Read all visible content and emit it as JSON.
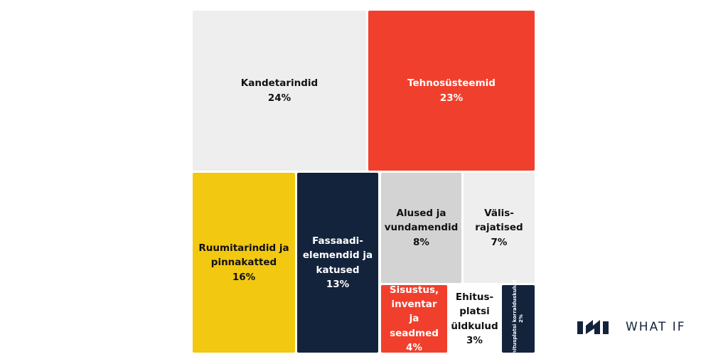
{
  "chart_data": {
    "type": "treemap",
    "categories": [
      "Kandetarindid",
      "Tehnosüsteemid",
      "Ruumitarindid ja pinnakatted",
      "Fassaadi-elemendid ja katused",
      "Alused ja vundamendid",
      "Välis-rajatised",
      "Sisustus, inventar ja seadmed",
      "Ehitus-platsi üldkulud",
      "Ehitusplatsi korralduskulud"
    ],
    "values": [
      24,
      23,
      16,
      13,
      8,
      7,
      4,
      3,
      2
    ],
    "value_labels": [
      "24%",
      "23%",
      "16%",
      "13%",
      "8%",
      "7%",
      "4%",
      "3%",
      "2%"
    ],
    "colors": [
      "#eeeeee",
      "#f0402d",
      "#f2c811",
      "#14233c",
      "#d3d3d3",
      "#eeeeee",
      "#f0402d",
      "#ffffff",
      "#14233c"
    ]
  },
  "logo": "WHAT IF"
}
